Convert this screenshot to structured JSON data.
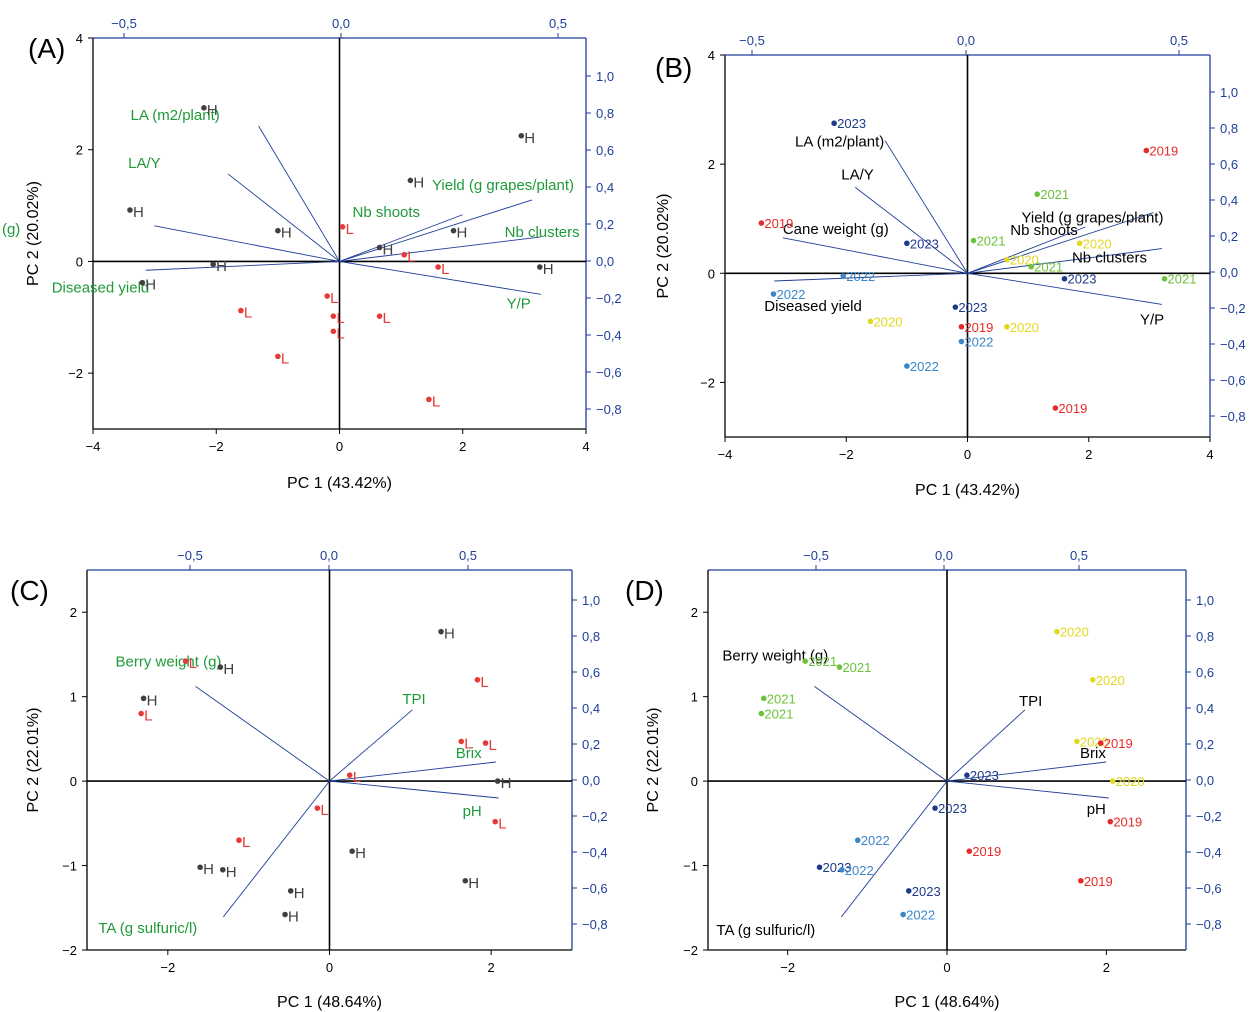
{
  "colors": {
    "axis_primary": "#000000",
    "axis_secondary": "#1f3f99",
    "loading_line": "#1f3f99",
    "label_H": "#404040",
    "label_L": "#e63a3a",
    "loading_green": "#1f9a3a",
    "loading_black": "#000000",
    "year_2019": "#e82a2a",
    "year_2020": "#e3d81e",
    "year_2021": "#6cc23a",
    "year_2022": "#3a86c8",
    "year_2023": "#1e3a8c"
  },
  "chart_data": [
    {
      "panel": "(A)",
      "type": "scatter",
      "xlabel": "PC 1 (43.42%)",
      "ylabel": "PC 2 (20.02%)",
      "xlim": [
        -4,
        4
      ],
      "ylim": [
        -3,
        4
      ],
      "x_ticks": [
        "−4",
        "−2",
        "0",
        "2",
        "4"
      ],
      "y_ticks": [
        "−2",
        "0",
        "2",
        "4"
      ],
      "top_ticks": [
        "−0,5",
        "0,0",
        "0,5"
      ],
      "right_ticks": [
        "−0,8",
        "−0,6",
        "−0,4",
        "−0,2",
        "0,0",
        "0,2",
        "0,4",
        "0,6",
        "0,8",
        "1,0"
      ],
      "loading_color": "green",
      "points": [
        {
          "x": -2.2,
          "y": 2.75,
          "label": "H"
        },
        {
          "x": 2.95,
          "y": 2.25,
          "label": "H"
        },
        {
          "x": 1.15,
          "y": 1.45,
          "label": "H"
        },
        {
          "x": -3.4,
          "y": 0.92,
          "label": "H"
        },
        {
          "x": -1.0,
          "y": 0.55,
          "label": "H"
        },
        {
          "x": 1.85,
          "y": 0.55,
          "label": "H"
        },
        {
          "x": 0.65,
          "y": 0.25,
          "label": "H"
        },
        {
          "x": -2.05,
          "y": -0.05,
          "label": "H"
        },
        {
          "x": 3.25,
          "y": -0.1,
          "label": "H"
        },
        {
          "x": -3.2,
          "y": -0.38,
          "label": "H"
        },
        {
          "x": 0.05,
          "y": 0.62,
          "label": "L"
        },
        {
          "x": 1.05,
          "y": 0.12,
          "label": "L"
        },
        {
          "x": 1.6,
          "y": -0.1,
          "label": "L"
        },
        {
          "x": -0.2,
          "y": -0.62,
          "label": "L"
        },
        {
          "x": -1.6,
          "y": -0.88,
          "label": "L"
        },
        {
          "x": -0.1,
          "y": -0.98,
          "label": "L"
        },
        {
          "x": 0.65,
          "y": -0.98,
          "label": "L"
        },
        {
          "x": -0.1,
          "y": -1.25,
          "label": "L"
        },
        {
          "x": -1.0,
          "y": -1.7,
          "label": "L"
        },
        {
          "x": 1.45,
          "y": -2.47,
          "label": "L"
        }
      ],
      "loadings": [
        {
          "name": "LA (m2/plant)",
          "x": -0.19,
          "y": 0.73
        },
        {
          "name": "LA/Y",
          "x": -0.26,
          "y": 0.47
        },
        {
          "name": "Yield (g grapes/plant)",
          "x": 0.44,
          "y": 0.33
        },
        {
          "name": "Nb shoots",
          "x": 0.28,
          "y": 0.25
        },
        {
          "name": "Nb clusters",
          "x": 0.46,
          "y": 0.13
        },
        {
          "name": "Cane weight (g)",
          "x": -0.43,
          "y": 0.19
        },
        {
          "name": "Diseased yield",
          "x": -0.45,
          "y": -0.05
        },
        {
          "name": "Y/P",
          "x": 0.46,
          "y": -0.18
        }
      ]
    },
    {
      "panel": "(B)",
      "type": "scatter",
      "xlabel": "PC 1 (43.42%)",
      "ylabel": "PC 2 (20.02%)",
      "xlim": [
        -4,
        4
      ],
      "ylim": [
        -3,
        4
      ],
      "x_ticks": [
        "−4",
        "−2",
        "0",
        "2",
        "4"
      ],
      "y_ticks": [
        "−2",
        "0",
        "2",
        "4"
      ],
      "top_ticks": [
        "−0,5",
        "0,0",
        "0,5"
      ],
      "right_ticks": [
        "−0,8",
        "−0,6",
        "−0,4",
        "−0,2",
        "0,0",
        "0,2",
        "0,4",
        "0,6",
        "0,8",
        "1,0"
      ],
      "loading_color": "black",
      "points": [
        {
          "x": -2.2,
          "y": 2.75,
          "label": "2023"
        },
        {
          "x": 2.95,
          "y": 2.25,
          "label": "2019"
        },
        {
          "x": 1.15,
          "y": 1.45,
          "label": "2021"
        },
        {
          "x": -3.4,
          "y": 0.92,
          "label": "2019"
        },
        {
          "x": -1.0,
          "y": 0.55,
          "label": "2023"
        },
        {
          "x": 0.1,
          "y": 0.6,
          "label": "2021"
        },
        {
          "x": 1.85,
          "y": 0.55,
          "label": "2020"
        },
        {
          "x": 0.65,
          "y": 0.25,
          "label": "2020"
        },
        {
          "x": 1.05,
          "y": 0.12,
          "label": "2021"
        },
        {
          "x": -2.05,
          "y": -0.05,
          "label": "2022"
        },
        {
          "x": 1.6,
          "y": -0.1,
          "label": "2023"
        },
        {
          "x": 3.25,
          "y": -0.1,
          "label": "2021"
        },
        {
          "x": -3.2,
          "y": -0.38,
          "label": "2022"
        },
        {
          "x": -0.2,
          "y": -0.62,
          "label": "2023"
        },
        {
          "x": -1.6,
          "y": -0.88,
          "label": "2020"
        },
        {
          "x": -0.1,
          "y": -0.98,
          "label": "2019"
        },
        {
          "x": 0.65,
          "y": -0.98,
          "label": "2020"
        },
        {
          "x": -0.1,
          "y": -1.25,
          "label": "2022"
        },
        {
          "x": -1.0,
          "y": -1.7,
          "label": "2022"
        },
        {
          "x": 1.45,
          "y": -2.47,
          "label": "2019"
        }
      ],
      "loadings": [
        {
          "name": "LA (m2/plant)",
          "x": -0.19,
          "y": 0.73
        },
        {
          "name": "LA/Y",
          "x": -0.26,
          "y": 0.47
        },
        {
          "name": "Yield (g grapes/plant)",
          "x": 0.44,
          "y": 0.33
        },
        {
          "name": "Nb shoots",
          "x": 0.28,
          "y": 0.25
        },
        {
          "name": "Nb clusters",
          "x": 0.46,
          "y": 0.13
        },
        {
          "name": "Cane weight (g)",
          "x": -0.43,
          "y": 0.19
        },
        {
          "name": "Diseased yield",
          "x": -0.45,
          "y": -0.05
        },
        {
          "name": "Y/P",
          "x": 0.46,
          "y": -0.18
        }
      ]
    },
    {
      "panel": "(C)",
      "type": "scatter",
      "xlabel": "PC 1 (48.64%)",
      "ylabel": "PC 2 (22.01%)",
      "xlim": [
        -3,
        3
      ],
      "ylim": [
        -2,
        2.5
      ],
      "x_ticks": [
        "−2",
        "0",
        "2"
      ],
      "y_ticks": [
        "−2",
        "−1",
        "0",
        "1",
        "2"
      ],
      "top_ticks": [
        "−0,5",
        "0,0",
        "0,5"
      ],
      "right_ticks": [
        "−0,8",
        "−0,6",
        "−0,4",
        "−0,2",
        "0,0",
        "0,2",
        "0,4",
        "0,6",
        "0,8",
        "1,0"
      ],
      "loading_color": "green",
      "points": [
        {
          "x": 1.38,
          "y": 1.77,
          "label": "H"
        },
        {
          "x": -1.35,
          "y": 1.35,
          "label": "H"
        },
        {
          "x": -2.3,
          "y": 0.98,
          "label": "H"
        },
        {
          "x": 2.08,
          "y": 0.0,
          "label": "H"
        },
        {
          "x": 0.28,
          "y": -0.83,
          "label": "H"
        },
        {
          "x": -1.6,
          "y": -1.02,
          "label": "H"
        },
        {
          "x": -1.32,
          "y": -1.05,
          "label": "H"
        },
        {
          "x": 1.68,
          "y": -1.18,
          "label": "H"
        },
        {
          "x": -0.48,
          "y": -1.3,
          "label": "H"
        },
        {
          "x": -0.55,
          "y": -1.58,
          "label": "H"
        },
        {
          "x": -1.78,
          "y": 1.42,
          "label": "L"
        },
        {
          "x": 1.83,
          "y": 1.2,
          "label": "L"
        },
        {
          "x": -2.33,
          "y": 0.8,
          "label": "L"
        },
        {
          "x": 1.63,
          "y": 0.47,
          "label": "L"
        },
        {
          "x": 1.93,
          "y": 0.45,
          "label": "L"
        },
        {
          "x": 0.25,
          "y": 0.07,
          "label": "L"
        },
        {
          "x": -0.15,
          "y": -0.32,
          "label": "L"
        },
        {
          "x": 2.05,
          "y": -0.48,
          "label": "L"
        },
        {
          "x": -1.12,
          "y": -0.7,
          "label": "L"
        }
      ],
      "loadings": [
        {
          "name": "Berry weight (g)",
          "x": -0.48,
          "y": 0.52
        },
        {
          "name": "TPI",
          "x": 0.3,
          "y": 0.39
        },
        {
          "name": "Brix",
          "x": 0.6,
          "y": 0.1
        },
        {
          "name": "pH",
          "x": 0.61,
          "y": -0.1
        },
        {
          "name": "TA (g sulfuric/l)",
          "x": -0.38,
          "y": -0.76
        }
      ]
    },
    {
      "panel": "(D)",
      "type": "scatter",
      "xlabel": "PC 1 (48.64%)",
      "ylabel": "PC 2 (22.01%)",
      "xlim": [
        -3,
        3
      ],
      "ylim": [
        -2,
        2.5
      ],
      "x_ticks": [
        "−2",
        "0",
        "2"
      ],
      "y_ticks": [
        "−2",
        "−1",
        "0",
        "1",
        "2"
      ],
      "top_ticks": [
        "−0,5",
        "0,0",
        "0,5"
      ],
      "right_ticks": [
        "−0,8",
        "−0,6",
        "−0,4",
        "−0,2",
        "0,0",
        "0,2",
        "0,4",
        "0,6",
        "0,8",
        "1,0"
      ],
      "loading_color": "black",
      "points": [
        {
          "x": 1.38,
          "y": 1.77,
          "label": "2020"
        },
        {
          "x": -1.78,
          "y": 1.42,
          "label": "2021"
        },
        {
          "x": -1.35,
          "y": 1.35,
          "label": "2021"
        },
        {
          "x": 1.83,
          "y": 1.2,
          "label": "2020"
        },
        {
          "x": -2.3,
          "y": 0.98,
          "label": "2021"
        },
        {
          "x": -2.33,
          "y": 0.8,
          "label": "2021"
        },
        {
          "x": 1.63,
          "y": 0.47,
          "label": "2020"
        },
        {
          "x": 1.93,
          "y": 0.45,
          "label": "2019"
        },
        {
          "x": 0.25,
          "y": 0.07,
          "label": "2023"
        },
        {
          "x": 2.08,
          "y": 0.0,
          "label": "2020"
        },
        {
          "x": -0.15,
          "y": -0.32,
          "label": "2023"
        },
        {
          "x": 2.05,
          "y": -0.48,
          "label": "2019"
        },
        {
          "x": -1.12,
          "y": -0.7,
          "label": "2022"
        },
        {
          "x": 0.28,
          "y": -0.83,
          "label": "2019"
        },
        {
          "x": -1.6,
          "y": -1.02,
          "label": "2023"
        },
        {
          "x": -1.32,
          "y": -1.05,
          "label": "2022"
        },
        {
          "x": 1.68,
          "y": -1.18,
          "label": "2019"
        },
        {
          "x": -0.48,
          "y": -1.3,
          "label": "2023"
        },
        {
          "x": -0.55,
          "y": -1.58,
          "label": "2022"
        }
      ],
      "loadings": [
        {
          "name": "Berry weight (g)",
          "x": -0.48,
          "y": 0.52
        },
        {
          "name": "TPI",
          "x": 0.3,
          "y": 0.39
        },
        {
          "name": "Brix",
          "x": 0.6,
          "y": 0.1
        },
        {
          "name": "pH",
          "x": 0.61,
          "y": -0.1
        },
        {
          "name": "TA (g sulfuric/l)",
          "x": -0.38,
          "y": -0.76
        }
      ]
    }
  ]
}
